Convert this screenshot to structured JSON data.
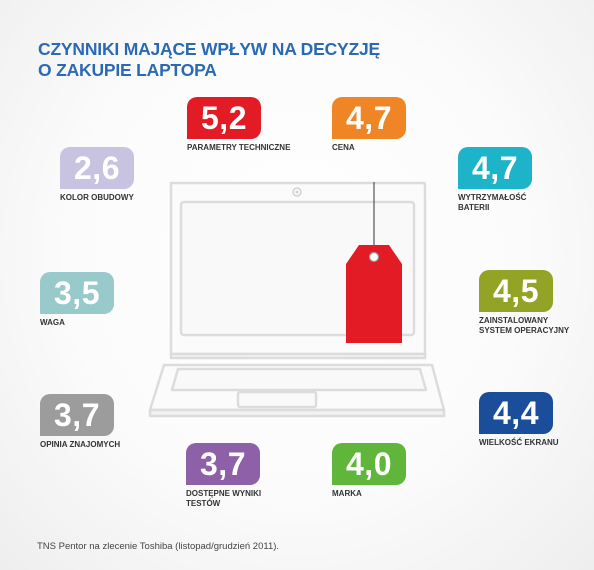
{
  "title": [
    "CZYNNIKI MAJĄCE WPŁYW NA DECYZJĘ",
    "O ZAKUPIE LAPTOPA"
  ],
  "source": "TNS Pentor na zlecenie Toshiba (listopad/grudzień 2011).",
  "chart_data": {
    "type": "table",
    "factors": [
      {
        "label": [
          "PARAMETRY TECHNICZNE"
        ],
        "value": "5,2",
        "color": "#e21b24"
      },
      {
        "label": [
          "CENA"
        ],
        "value": "4,7",
        "color": "#f08526"
      },
      {
        "label": [
          "KOLOR OBUDOWY"
        ],
        "value": "2,6",
        "color": "#c7c3e0"
      },
      {
        "label": [
          "WYTRZYMAŁOŚĆ",
          "BATERII"
        ],
        "value": "4,7",
        "color": "#1db3c9"
      },
      {
        "label": [
          "WAGA"
        ],
        "value": "3,5",
        "color": "#99cacb"
      },
      {
        "label": [
          "ZAINSTALOWANY",
          "SYSTEM OPERACYJNY"
        ],
        "value": "4,5",
        "color": "#93a325"
      },
      {
        "label": [
          "OPINIA ZNAJOMYCH"
        ],
        "value": "3,7",
        "color": "#9c9c9c"
      },
      {
        "label": [
          "WIELKOŚĆ EKRANU"
        ],
        "value": "4,4",
        "color": "#1b4e9a"
      },
      {
        "label": [
          "DOSTĘPNE WYNIKI",
          "TESTÓW"
        ],
        "value": "3,7",
        "color": "#8d60a8"
      },
      {
        "label": [
          "MARKA"
        ],
        "value": "4,0",
        "color": "#5fb63b"
      }
    ]
  }
}
